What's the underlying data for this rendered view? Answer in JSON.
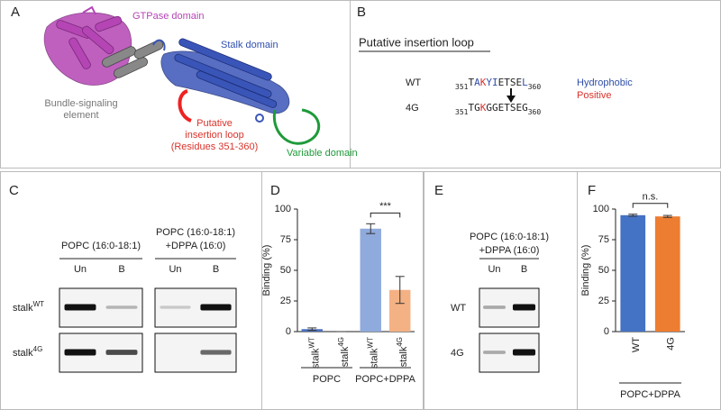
{
  "panels": {
    "A": {
      "letter": "A",
      "gtpase": "GTPase domain",
      "stalk": "Stalk domain",
      "bse": [
        "Bundle-signaling",
        "element"
      ],
      "loop": [
        "Putative",
        "insertion loop",
        "(Residues 351-360)"
      ],
      "variable": "Variable domain"
    },
    "B": {
      "letter": "B",
      "heading": "Putative insertion loop",
      "rows": [
        {
          "name": "WT",
          "start": "351",
          "residues": [
            "T",
            "A",
            "K",
            "Y",
            "I",
            "E",
            "T",
            "S",
            "E",
            "L"
          ],
          "end": "360",
          "residue_colors": [
            "#222222",
            "#2f4fa8",
            "#d9332b",
            "#2f4fa8",
            "#2f4fa8",
            "#222222",
            "#222222",
            "#222222",
            "#222222",
            "#2f4fa8"
          ]
        },
        {
          "name": "4G",
          "start": "351",
          "residues": [
            "T",
            "G",
            "K",
            "G",
            "G",
            "E",
            "T",
            "S",
            "E",
            "G"
          ],
          "end": "360",
          "residue_colors": [
            "#222222",
            "#222222",
            "#d9332b",
            "#222222",
            "#222222",
            "#222222",
            "#222222",
            "#222222",
            "#222222",
            "#222222"
          ]
        }
      ],
      "legend": [
        {
          "text": "Hydrophobic",
          "color": "#2f4fa8"
        },
        {
          "text": "Positive",
          "color": "#d9332b"
        }
      ]
    },
    "C": {
      "letter": "C",
      "columns": [
        {
          "header": [
            "POPC (16:0-18:1)"
          ],
          "lanes": [
            "Un",
            "B"
          ]
        },
        {
          "header": [
            "POPC (16:0-18:1)",
            "+DPPA (16:0)"
          ],
          "lanes": [
            "Un",
            "B"
          ]
        }
      ],
      "rows": [
        {
          "base": "stalk",
          "sup": "WT"
        },
        {
          "base": "stalk",
          "sup": "4G"
        }
      ]
    },
    "E": {
      "letter": "E",
      "header": [
        "POPC (16:0-18:1)",
        "+DPPA (16:0)"
      ],
      "lanes": [
        "Un",
        "B"
      ],
      "rows": [
        "WT",
        "4G"
      ]
    }
  },
  "chart_data": [
    {
      "type": "bar",
      "letter": "D",
      "ylabel": "Binding (%)",
      "categories": [
        {
          "base": "stalk",
          "sup": "WT"
        },
        {
          "base": "stalk",
          "sup": "4G"
        },
        {
          "base": "stalk",
          "sup": "WT"
        },
        {
          "base": "stalk",
          "sup": "4G"
        }
      ],
      "groups": [
        "POPC",
        "POPC+DPPA"
      ],
      "values": [
        2,
        0,
        84,
        34
      ],
      "errors": [
        1,
        0,
        4,
        11
      ],
      "colors": [
        "#4a6fbd",
        "#4a6fbd",
        "#8faadc",
        "#f4b183"
      ],
      "ylim": [
        0,
        100
      ],
      "yticks": [
        0,
        25,
        50,
        75,
        100
      ],
      "annotation": "***"
    },
    {
      "type": "bar",
      "letter": "F",
      "ylabel": "Binding (%)",
      "categories": [
        "WT",
        "4G"
      ],
      "groups": [
        "POPC+DPPA"
      ],
      "values": [
        95,
        94
      ],
      "errors": [
        0.8,
        0.8
      ],
      "colors": [
        "#4472c4",
        "#ed7d31"
      ],
      "ylim": [
        0,
        100
      ],
      "yticks": [
        0,
        25,
        50,
        75,
        100
      ],
      "annotation": "n.s."
    }
  ]
}
